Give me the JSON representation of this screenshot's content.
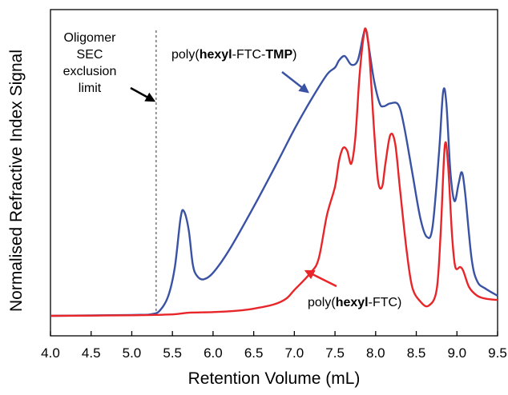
{
  "chart_data": {
    "type": "line",
    "title": "",
    "xlabel": "Retention Volume (mL)",
    "ylabel": "Normalised Refractive Index  Signal",
    "xlim": [
      4.0,
      9.5
    ],
    "ylim": [
      0,
      1
    ],
    "x_ticks": [
      "4.0",
      "4.5",
      "5.0",
      "5.5",
      "6.0",
      "6.5",
      "7.0",
      "7.5",
      "8.0",
      "8.5",
      "9.0",
      "9.5"
    ],
    "y_ticks_shown": false,
    "grid": false,
    "exclusion_limit": {
      "x": 5.3,
      "label_lines": [
        "Oligomer",
        "SEC",
        "exclusion",
        "limit"
      ]
    },
    "series": [
      {
        "name": "poly(hexyl-FTC-TMP)",
        "label_parts": [
          {
            "text": "poly(",
            "bold": false
          },
          {
            "text": "hexyl",
            "bold": true
          },
          {
            "text": "-FTC-",
            "bold": false
          },
          {
            "text": "TMP",
            "bold": true
          },
          {
            "text": ")",
            "bold": false
          }
        ],
        "color": "#3a52a4",
        "points": [
          [
            4.0,
            0.0
          ],
          [
            5.0,
            0.003
          ],
          [
            5.25,
            0.006
          ],
          [
            5.35,
            0.02
          ],
          [
            5.45,
            0.07
          ],
          [
            5.53,
            0.17
          ],
          [
            5.6,
            0.34
          ],
          [
            5.64,
            0.365
          ],
          [
            5.7,
            0.3
          ],
          [
            5.75,
            0.18
          ],
          [
            5.8,
            0.14
          ],
          [
            5.88,
            0.127
          ],
          [
            6.0,
            0.15
          ],
          [
            6.2,
            0.23
          ],
          [
            6.5,
            0.38
          ],
          [
            6.8,
            0.54
          ],
          [
            7.0,
            0.65
          ],
          [
            7.2,
            0.75
          ],
          [
            7.4,
            0.84
          ],
          [
            7.5,
            0.865
          ],
          [
            7.55,
            0.89
          ],
          [
            7.62,
            0.905
          ],
          [
            7.7,
            0.875
          ],
          [
            7.78,
            0.89
          ],
          [
            7.85,
            0.98
          ],
          [
            7.88,
            0.998
          ],
          [
            7.92,
            0.93
          ],
          [
            7.98,
            0.82
          ],
          [
            8.05,
            0.74
          ],
          [
            8.1,
            0.73
          ],
          [
            8.18,
            0.74
          ],
          [
            8.28,
            0.735
          ],
          [
            8.35,
            0.66
          ],
          [
            8.45,
            0.5
          ],
          [
            8.55,
            0.34
          ],
          [
            8.63,
            0.275
          ],
          [
            8.7,
            0.31
          ],
          [
            8.78,
            0.57
          ],
          [
            8.83,
            0.78
          ],
          [
            8.87,
            0.74
          ],
          [
            8.92,
            0.5
          ],
          [
            8.97,
            0.4
          ],
          [
            9.02,
            0.46
          ],
          [
            9.06,
            0.5
          ],
          [
            9.1,
            0.43
          ],
          [
            9.18,
            0.2
          ],
          [
            9.25,
            0.12
          ],
          [
            9.35,
            0.095
          ],
          [
            9.5,
            0.07
          ]
        ]
      },
      {
        "name": "poly(hexyl-FTC)",
        "label_parts": [
          {
            "text": "poly(",
            "bold": false
          },
          {
            "text": "hexyl",
            "bold": true
          },
          {
            "text": "-FTC)",
            "bold": false
          }
        ],
        "color": "#e8262a",
        "points": [
          [
            4.0,
            0.0
          ],
          [
            5.0,
            0.002
          ],
          [
            5.5,
            0.005
          ],
          [
            5.7,
            0.011
          ],
          [
            6.0,
            0.013
          ],
          [
            6.3,
            0.018
          ],
          [
            6.5,
            0.025
          ],
          [
            6.75,
            0.04
          ],
          [
            6.9,
            0.06
          ],
          [
            7.0,
            0.09
          ],
          [
            7.2,
            0.15
          ],
          [
            7.3,
            0.2
          ],
          [
            7.4,
            0.35
          ],
          [
            7.5,
            0.45
          ],
          [
            7.55,
            0.54
          ],
          [
            7.6,
            0.585
          ],
          [
            7.65,
            0.575
          ],
          [
            7.7,
            0.53
          ],
          [
            7.75,
            0.62
          ],
          [
            7.8,
            0.83
          ],
          [
            7.85,
            0.97
          ],
          [
            7.88,
            0.998
          ],
          [
            7.92,
            0.92
          ],
          [
            7.98,
            0.65
          ],
          [
            8.03,
            0.47
          ],
          [
            8.08,
            0.45
          ],
          [
            8.12,
            0.53
          ],
          [
            8.18,
            0.63
          ],
          [
            8.24,
            0.6
          ],
          [
            8.3,
            0.44
          ],
          [
            8.38,
            0.23
          ],
          [
            8.45,
            0.1
          ],
          [
            8.55,
            0.05
          ],
          [
            8.65,
            0.035
          ],
          [
            8.75,
            0.09
          ],
          [
            8.8,
            0.29
          ],
          [
            8.85,
            0.59
          ],
          [
            8.89,
            0.53
          ],
          [
            8.94,
            0.28
          ],
          [
            8.98,
            0.17
          ],
          [
            9.04,
            0.17
          ],
          [
            9.08,
            0.155
          ],
          [
            9.15,
            0.1
          ],
          [
            9.25,
            0.07
          ],
          [
            9.35,
            0.06
          ],
          [
            9.5,
            0.055
          ]
        ]
      }
    ],
    "annotations": [
      {
        "target": "series-1",
        "arrow_to_x": 7.28,
        "arrow_to_y": 0.78
      },
      {
        "target": "series-2",
        "arrow_to_x": 7.2,
        "arrow_to_y": 0.15
      },
      {
        "target": "exclusion_limit",
        "arrow_to_x": 5.27,
        "arrow_to_y": 0.76
      }
    ]
  }
}
